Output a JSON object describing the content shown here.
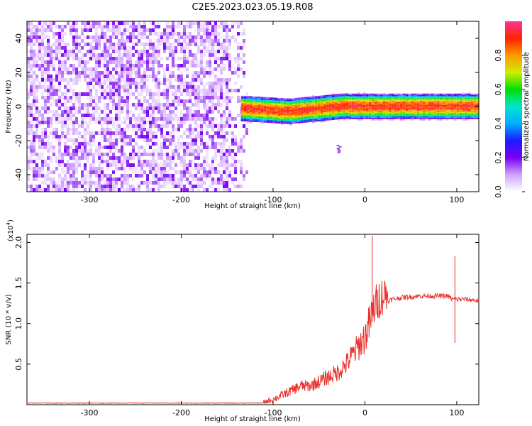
{
  "title": "C2E5.2023.023.05.19.R08",
  "chart_data": [
    {
      "type": "heatmap",
      "xlabel": "Height of straight line (km)",
      "ylabel": "Frequency (Hz)",
      "xlim": [
        -368,
        124
      ],
      "ylim": [
        -50,
        50
      ],
      "xticks": [
        -300,
        -200,
        -100,
        0,
        100
      ],
      "yticks": [
        -40,
        -20,
        0,
        20,
        40
      ],
      "colorbar": {
        "label": "Normalized spectral amplitude",
        "range": [
          0.0,
          1.0
        ],
        "ticks": [
          0.0,
          0.2,
          0.4,
          0.6,
          0.8
        ],
        "colors": [
          "#ffffff",
          "#cfa3ff",
          "#7a00f0",
          "#1c1cff",
          "#00b0ff",
          "#00e5cc",
          "#00e000",
          "#ccee00",
          "#ff9900",
          "#ff2200",
          "#ff3399"
        ]
      },
      "regions": [
        {
          "x_range": [
            -368,
            -128
          ],
          "y_range": [
            -50,
            50
          ],
          "amplitude": 0.12
        },
        {
          "x_range": [
            -135,
            124
          ],
          "y_center": 0,
          "half_width": 8,
          "amplitude": 0.9
        },
        {
          "x": -28,
          "y": -25,
          "amplitude": 0.15
        }
      ]
    },
    {
      "type": "line",
      "xlabel": "Height of straight line (km)",
      "ylabel": "SNR (10 * v/v)",
      "scale_label": "(x10",
      "scale_exp": "4",
      "scale_close": ")",
      "xlim": [
        -368,
        124
      ],
      "ylim": [
        0,
        2.1
      ],
      "xticks": [
        -300,
        -200,
        -100,
        0,
        100
      ],
      "yticks": [
        0.5,
        1.0,
        1.5,
        2.0
      ],
      "ytick_labels": [
        "0.5",
        "1.0",
        "1.5",
        "2.0"
      ],
      "series": [
        {
          "color": "#e8302a",
          "points": [
            [
              -368,
              0.02
            ],
            [
              -300,
              0.02
            ],
            [
              -200,
              0.02
            ],
            [
              -110,
              0.02
            ],
            [
              -100,
              0.05
            ],
            [
              -90,
              0.1
            ],
            [
              -80,
              0.15
            ],
            [
              -70,
              0.2
            ],
            [
              -60,
              0.2
            ],
            [
              -50,
              0.25
            ],
            [
              -40,
              0.3
            ],
            [
              -30,
              0.35
            ],
            [
              -20,
              0.45
            ],
            [
              -10,
              0.6
            ],
            [
              0,
              0.75
            ],
            [
              5,
              0.9
            ],
            [
              10,
              1.1
            ],
            [
              15,
              1.2
            ],
            [
              20,
              1.25
            ],
            [
              30,
              1.3
            ],
            [
              40,
              1.32
            ],
            [
              50,
              1.33
            ],
            [
              60,
              1.34
            ],
            [
              70,
              1.34
            ],
            [
              80,
              1.34
            ],
            [
              90,
              1.34
            ],
            [
              95,
              1.3
            ],
            [
              100,
              1.3
            ],
            [
              110,
              1.3
            ],
            [
              124,
              1.28
            ]
          ]
        }
      ],
      "spikes": [
        [
          8,
          2.08
        ],
        [
          98,
          0.76
        ],
        [
          98,
          1.83
        ]
      ]
    }
  ]
}
